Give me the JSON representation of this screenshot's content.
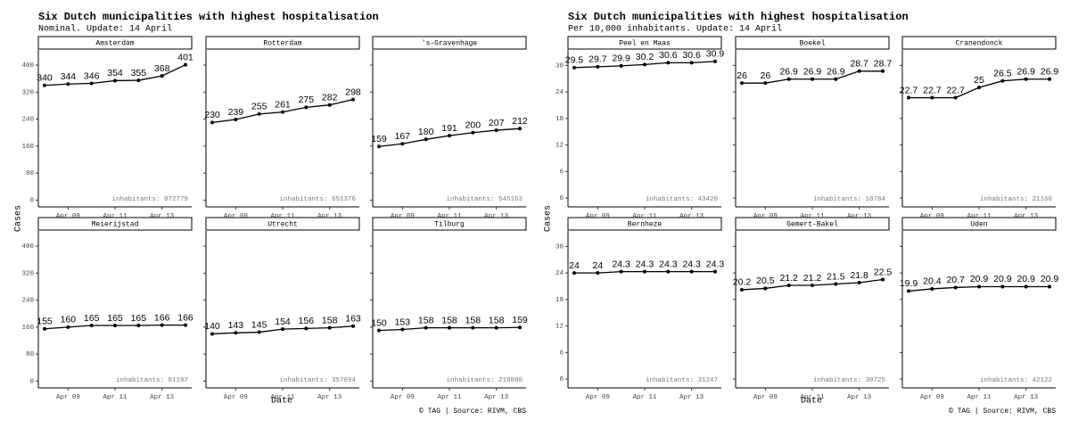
{
  "chart_data": [
    {
      "type": "line",
      "title": "Six Dutch municipalities with highest hospitalisation",
      "subtitle": "Nominal. Update: 14 April",
      "ylabel": "Cases",
      "xlabel": "Date",
      "caption": "© TAG | Source: RIVM, CBS",
      "color": "#000000",
      "categories": [
        null,
        "Apr 09",
        null,
        "Apr 11",
        null,
        "Apr 13",
        null
      ],
      "ylim": [
        -20,
        445
      ],
      "yticks": [
        0,
        80,
        160,
        240,
        320,
        400
      ],
      "facets": [
        {
          "name": "Amsterdam",
          "note": "inhabitants: 872779",
          "values": [
            340,
            344,
            346,
            354,
            355,
            368,
            401
          ]
        },
        {
          "name": "Rotterdam",
          "note": "inhabitants: 651376",
          "values": [
            230,
            239,
            255,
            261,
            275,
            282,
            298
          ]
        },
        {
          "name": "'s-Gravenhage",
          "note": "inhabitants: 545163",
          "values": [
            159,
            167,
            180,
            191,
            200,
            207,
            212
          ]
        },
        {
          "name": "Meierijstad",
          "note": "inhabitants: 81197",
          "values": [
            155,
            160,
            165,
            165,
            165,
            166,
            166
          ]
        },
        {
          "name": "Utrecht",
          "note": "inhabitants: 357694",
          "values": [
            140,
            143,
            145,
            154,
            156,
            158,
            163
          ]
        },
        {
          "name": "Tilburg",
          "note": "inhabitants: 219800",
          "values": [
            150,
            153,
            158,
            158,
            158,
            158,
            159
          ]
        }
      ]
    },
    {
      "type": "line",
      "title": "Six Dutch municipalities with highest hospitalisation",
      "subtitle": "Per 10,000 inhabitants. Update: 14 April",
      "ylabel": "Cases",
      "xlabel": "Date",
      "caption": "© TAG | Source: RIVM, CBS",
      "color": "#000000",
      "categories": [
        null,
        "Apr 09",
        null,
        "Apr 11",
        null,
        "Apr 13",
        null
      ],
      "ylim": [
        -2,
        33.5
      ],
      "yticks": [
        0,
        6,
        12,
        18,
        24,
        30
      ],
      "facets": [
        {
          "name": "Peel en Maas",
          "note": "inhabitants: 43420",
          "values": [
            29.5,
            29.7,
            29.9,
            30.2,
            30.6,
            30.6,
            30.9
          ]
        },
        {
          "name": "Boekel",
          "note": "inhabitants: 10784",
          "values": [
            26,
            26,
            26.9,
            26.9,
            26.9,
            28.7,
            28.7
          ]
        },
        {
          "name": "Cranendonck",
          "note": "inhabitants: 21166",
          "values": [
            22.7,
            22.7,
            22.7,
            25,
            26.5,
            26.9,
            26.9
          ]
        },
        {
          "name": "Bernheze",
          "note": "inhabitants: 31247",
          "values": [
            24,
            24,
            24.3,
            24.3,
            24.3,
            24.3,
            24.3
          ]
        },
        {
          "name": "Gemert-Bakel",
          "note": "inhabitants: 30725",
          "values": [
            20.2,
            20.5,
            21.2,
            21.2,
            21.5,
            21.8,
            22.5
          ]
        },
        {
          "name": "Uden",
          "note": "inhabitants: 42122",
          "values": [
            19.9,
            20.4,
            20.7,
            20.9,
            20.9,
            20.9,
            20.9
          ]
        }
      ]
    }
  ]
}
